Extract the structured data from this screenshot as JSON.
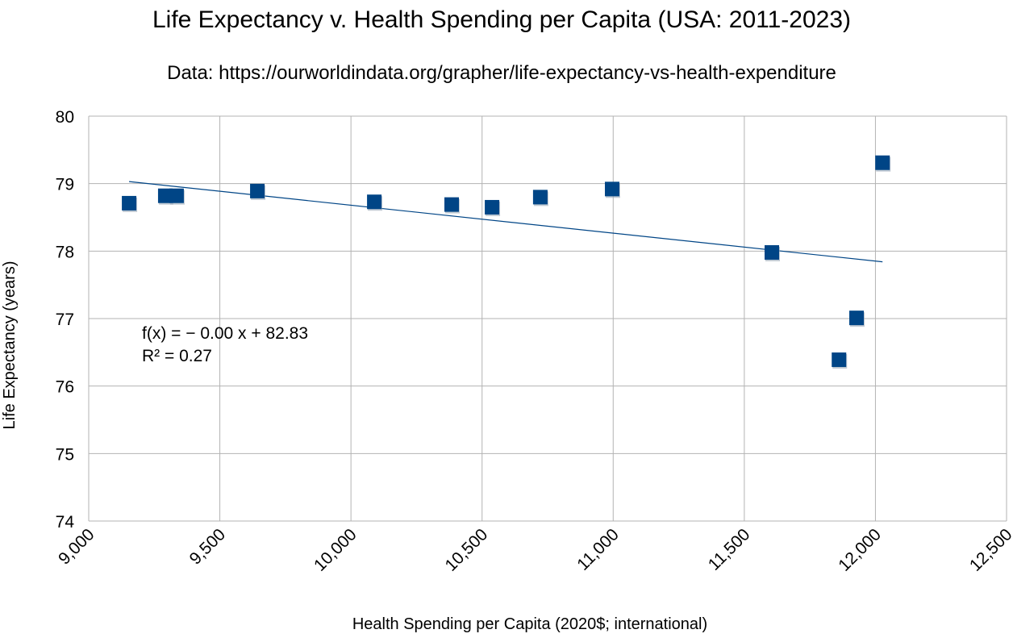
{
  "chart_data": {
    "type": "scatter",
    "title": "Life Expectancy v. Health Spending per Capita (USA: 2011-2023)",
    "subtitle": "Data: https://ourworldindata.org/grapher/life-expectancy-vs-health-expenditure",
    "xlabel": "Health Spending per Capita (2020$; international)",
    "ylabel": "Life Expectancy (years)",
    "xlim": [
      9000,
      12500
    ],
    "ylim": [
      74,
      80
    ],
    "xticks": [
      9000,
      9500,
      10000,
      10500,
      11000,
      11500,
      12000,
      12500
    ],
    "xtick_labels": [
      "9,000",
      "9,500",
      "10,000",
      "10,500",
      "11,000",
      "11,500",
      "12,000",
      "12,500"
    ],
    "yticks": [
      74,
      75,
      76,
      77,
      78,
      79,
      80
    ],
    "ytick_labels": [
      "74",
      "75",
      "76",
      "77",
      "78",
      "79",
      "80"
    ],
    "grid": true,
    "marker_color": "#004586",
    "trend_color": "#004586",
    "points": [
      {
        "x": 9154,
        "y": 78.71
      },
      {
        "x": 9292,
        "y": 78.82
      },
      {
        "x": 9335,
        "y": 78.82
      },
      {
        "x": 9643,
        "y": 78.89
      },
      {
        "x": 10089,
        "y": 78.73
      },
      {
        "x": 10384,
        "y": 78.69
      },
      {
        "x": 10538,
        "y": 78.65
      },
      {
        "x": 10722,
        "y": 78.8
      },
      {
        "x": 10996,
        "y": 78.92
      },
      {
        "x": 11605,
        "y": 77.98
      },
      {
        "x": 11861,
        "y": 76.39
      },
      {
        "x": 11928,
        "y": 77.01
      },
      {
        "x": 12027,
        "y": 79.31
      }
    ],
    "trendline": {
      "slope": -0.000414,
      "intercept": 82.82,
      "x_range": [
        9154,
        12027
      ]
    },
    "equation_label": "f(x) = − 0.00 x + 82.83",
    "r2_label": "R² = 0.27"
  }
}
